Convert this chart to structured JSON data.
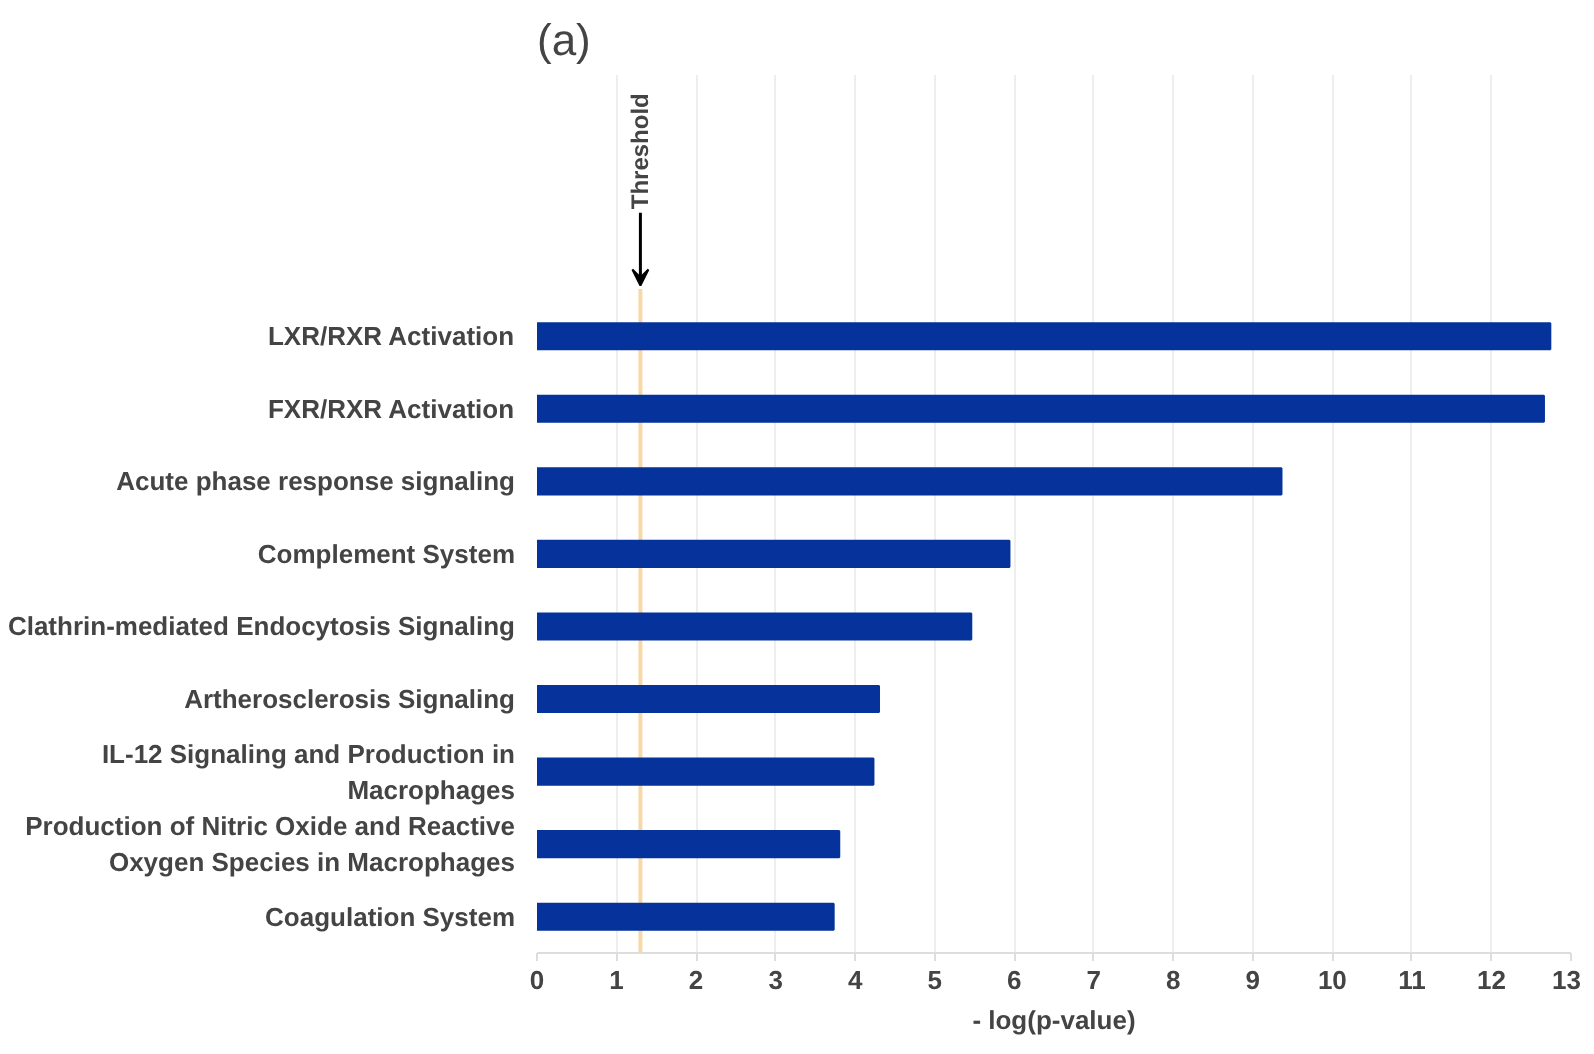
{
  "chart_data": {
    "type": "bar",
    "orientation": "horizontal",
    "title": "(a)",
    "xlabel": "- log(p-value)",
    "categories": [
      "LXR/RXR Activation",
      "FXR/RXR Activation",
      "Acute phase response signaling",
      "Complement System",
      "Clathrin-mediated Endocytosis Signaling",
      "Artherosclerosis Signaling",
      "IL-12 Signaling and Production in Macrophages",
      "Production of Nitric Oxide and Reactive Oxygen Species in Macrophages",
      "Coagulation System"
    ],
    "values": [
      12.74,
      12.66,
      9.36,
      5.94,
      5.46,
      4.3,
      4.23,
      3.8,
      3.73
    ],
    "color": "#05339b",
    "xlim": [
      0,
      13
    ],
    "xticks": [
      0,
      1,
      2,
      3,
      4,
      5,
      6,
      7,
      8,
      9,
      10,
      11,
      12,
      13
    ],
    "grid": "x",
    "ref_lines": [
      {
        "axis": "x",
        "value": 1.3,
        "label": "Threshold",
        "color": "#f7d9a8"
      }
    ]
  }
}
